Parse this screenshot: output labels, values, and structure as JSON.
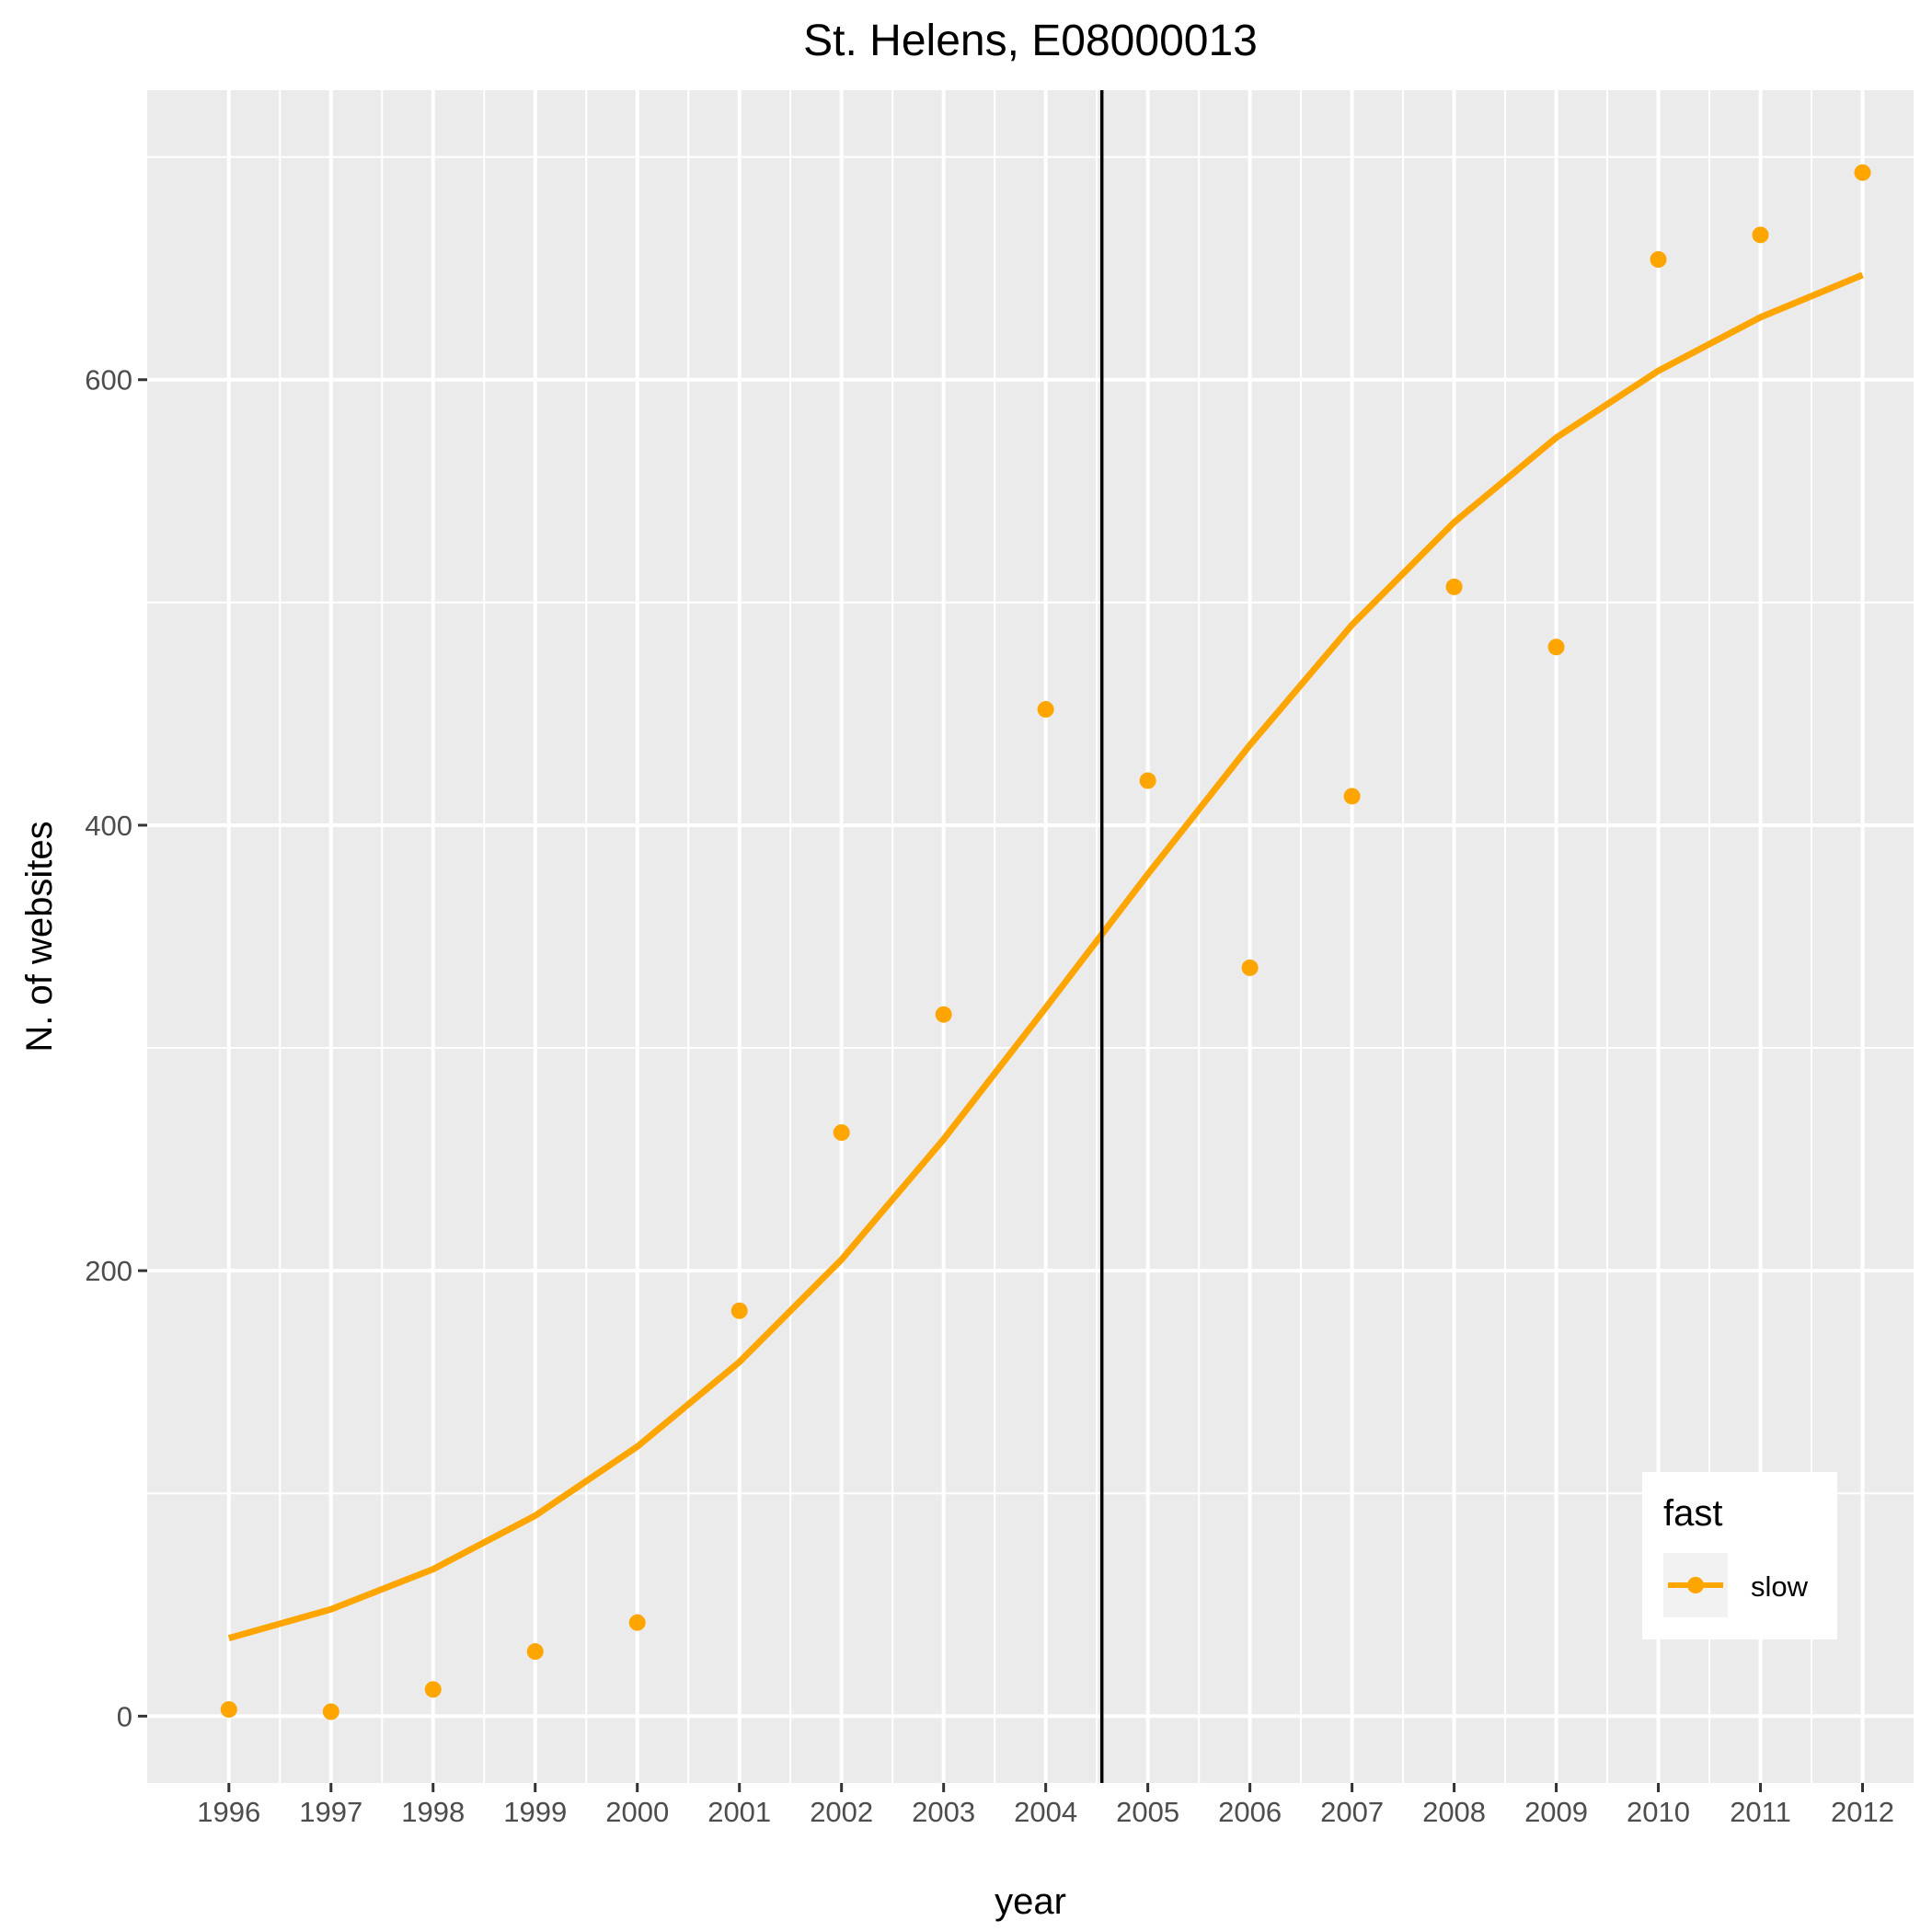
{
  "chart_data": {
    "type": "scatter",
    "title": "St. Helens, E08000013",
    "xlabel": "year",
    "ylabel": "N. of websites",
    "x": [
      1996,
      1997,
      1998,
      1999,
      2000,
      2001,
      2002,
      2003,
      2004,
      2005,
      2006,
      2007,
      2008,
      2009,
      2010,
      2011,
      2012
    ],
    "x_tick_labels": [
      "1996",
      "1997",
      "1998",
      "1999",
      "2000",
      "2001",
      "2002",
      "2003",
      "2004",
      "2005",
      "2006",
      "2007",
      "2008",
      "2009",
      "2010",
      "2011",
      "2012"
    ],
    "y_ticks": [
      0,
      200,
      400,
      600
    ],
    "y_tick_labels": [
      "0",
      "200",
      "400",
      "600"
    ],
    "xlim": [
      1995.2,
      2012.5
    ],
    "ylim": [
      -30,
      730
    ],
    "grid": true,
    "series": [
      {
        "name": "slow",
        "points": [
          3,
          2,
          12,
          29,
          42,
          182,
          262,
          315,
          452,
          420,
          336,
          413,
          507,
          480,
          654,
          665,
          693
        ],
        "trend": [
          35,
          48,
          66,
          90,
          121,
          159,
          205,
          259,
          318,
          378,
          436,
          490,
          536,
          574,
          604,
          628,
          647
        ],
        "color": "#FFA500"
      }
    ],
    "vline": {
      "x": 2004.55,
      "color": "#000000"
    },
    "legend": {
      "title": "fast",
      "placement": "bottom-right"
    },
    "background": {
      "panel": "#EBEBEB",
      "grid": "#FFFFFF"
    }
  }
}
